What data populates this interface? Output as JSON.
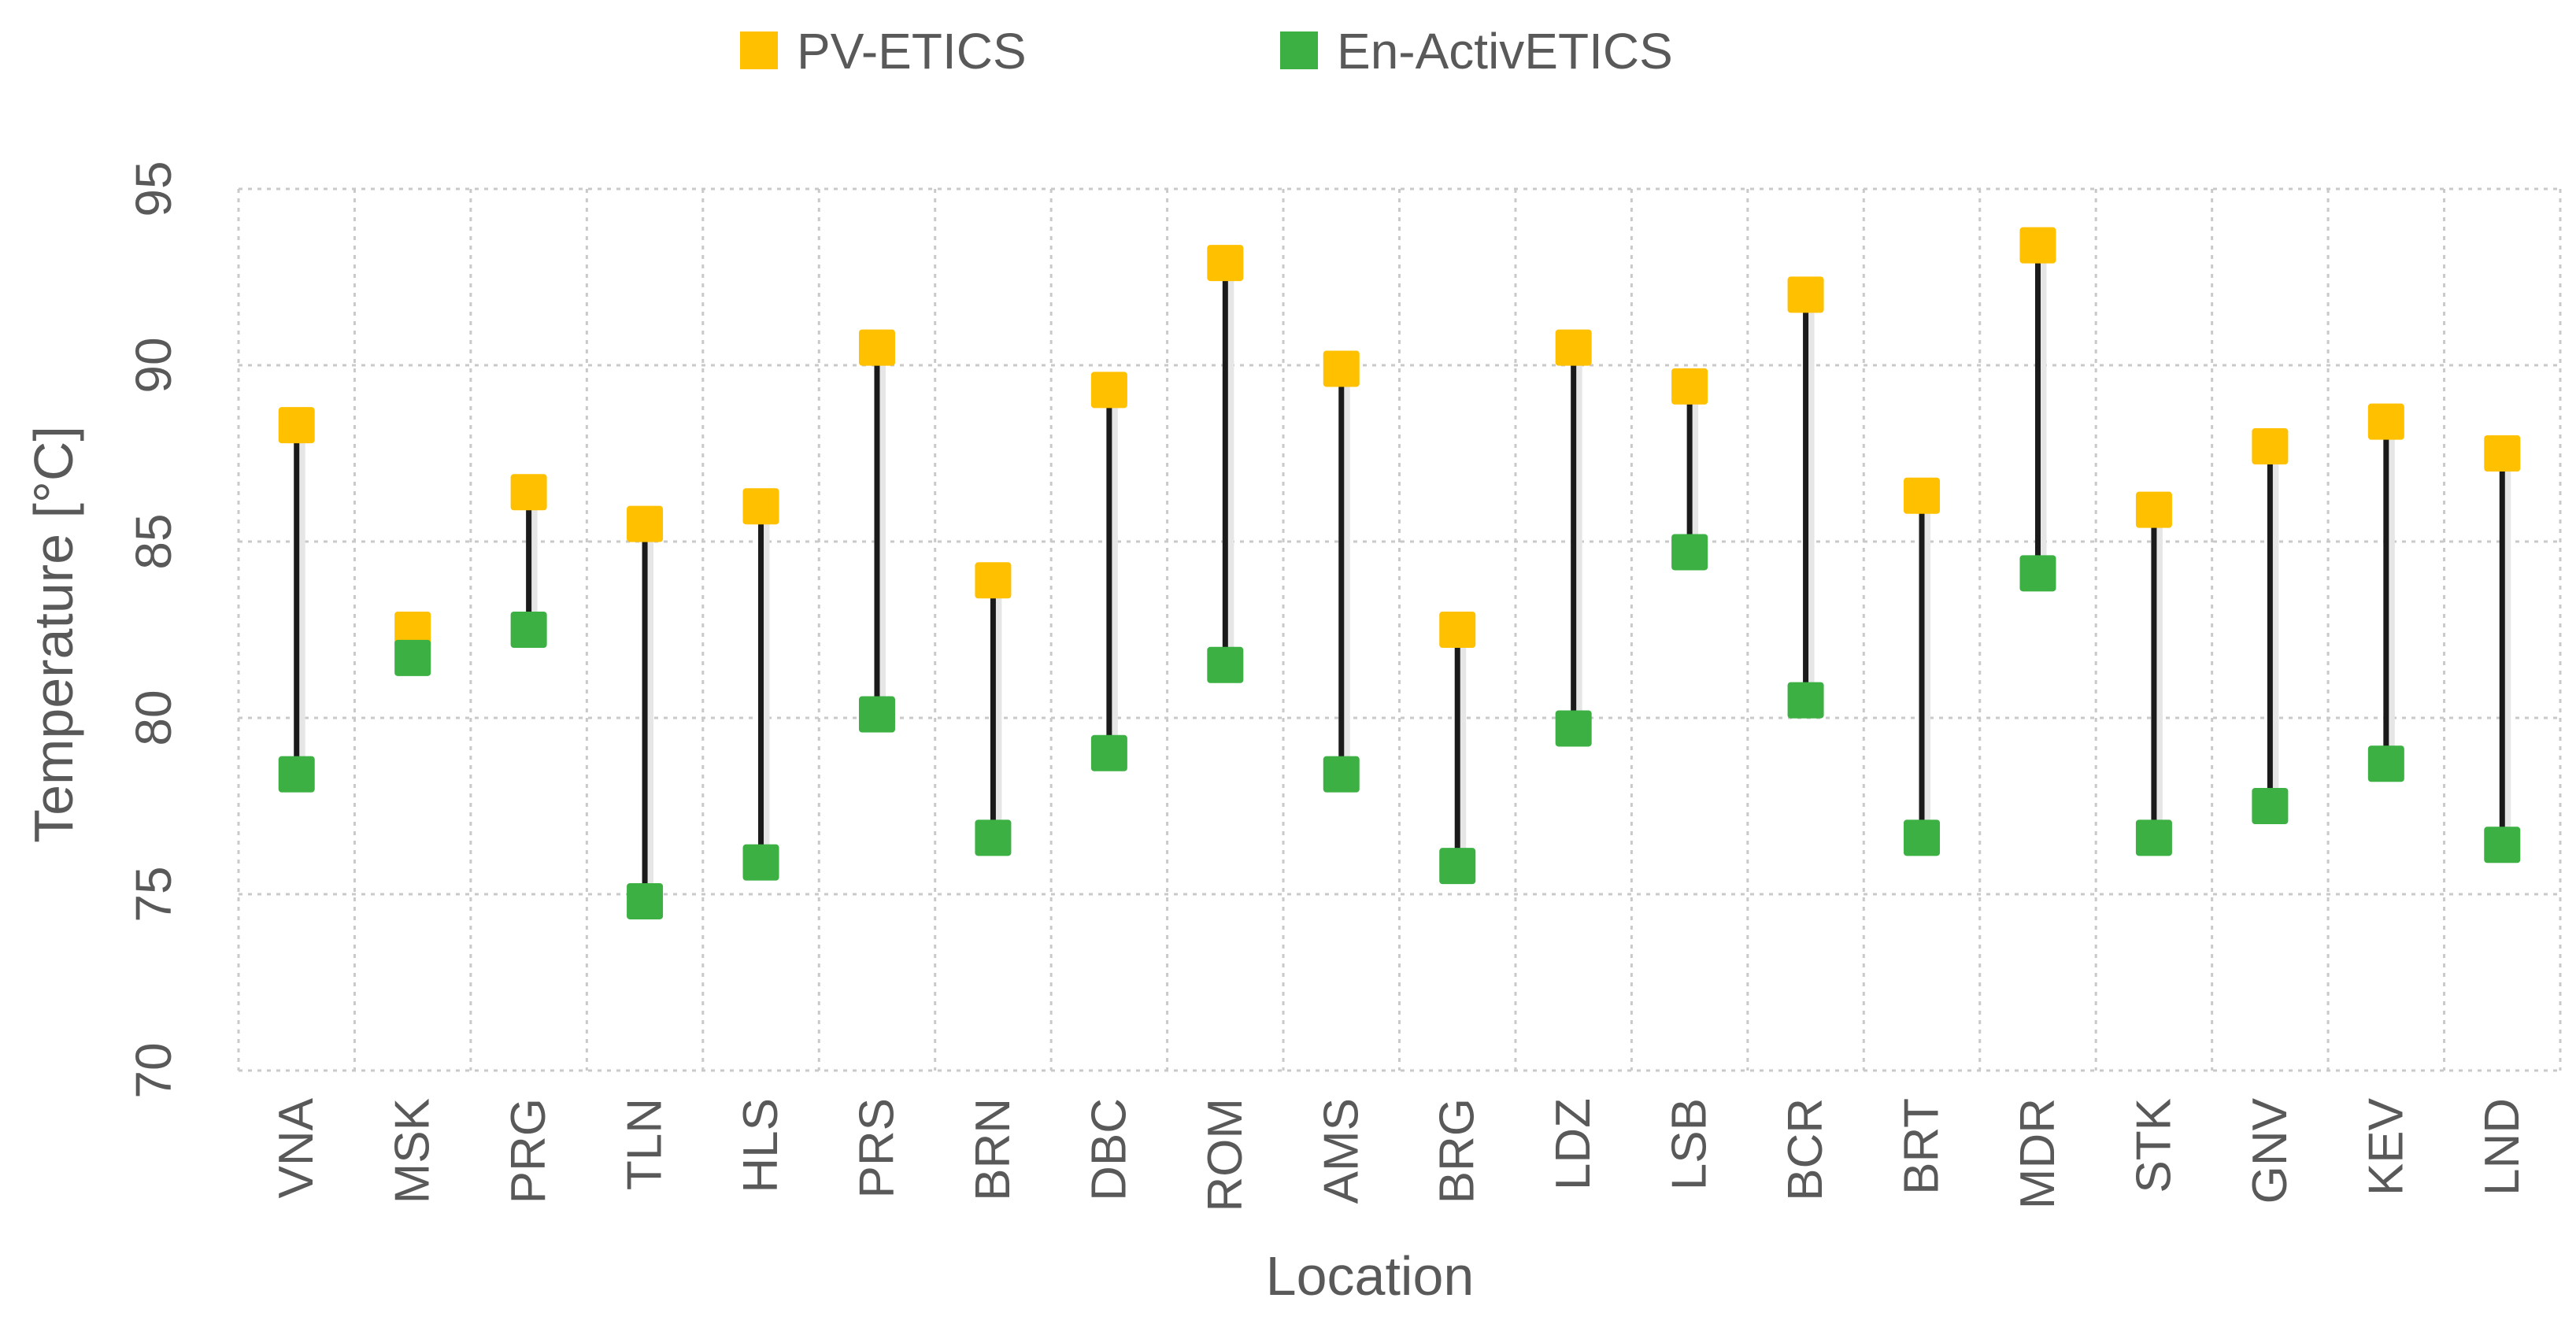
{
  "chart_data": {
    "type": "scatter",
    "title": "",
    "xlabel": "Location",
    "ylabel": "Temperature [°C]",
    "ylim": [
      70,
      95
    ],
    "yticks": [
      70,
      75,
      80,
      85,
      90,
      95
    ],
    "grid": true,
    "legend_position": "top",
    "categories": [
      "VNA",
      "MSK",
      "PRG",
      "TLN",
      "HLS",
      "PRS",
      "BRN",
      "DBC",
      "ROM",
      "AMS",
      "BRG",
      "LDZ",
      "LSB",
      "BCR",
      "BRT",
      "MDR",
      "STK",
      "GNV",
      "KEV",
      "LND"
    ],
    "series": [
      {
        "name": "PV-ETICS",
        "color": "#FFC000",
        "values": [
          88.3,
          82.5,
          86.4,
          85.5,
          86.0,
          90.5,
          83.9,
          89.3,
          92.9,
          89.9,
          82.5,
          90.5,
          89.4,
          92.0,
          86.3,
          93.4,
          85.9,
          87.7,
          88.4,
          87.5
        ]
      },
      {
        "name": "En-ActivETICS",
        "color": "#3CB043",
        "values": [
          78.4,
          81.7,
          82.5,
          74.8,
          75.9,
          80.1,
          76.6,
          79.0,
          81.5,
          78.4,
          75.8,
          79.7,
          84.7,
          80.5,
          76.6,
          84.1,
          76.6,
          77.5,
          78.7,
          76.4
        ]
      }
    ]
  }
}
